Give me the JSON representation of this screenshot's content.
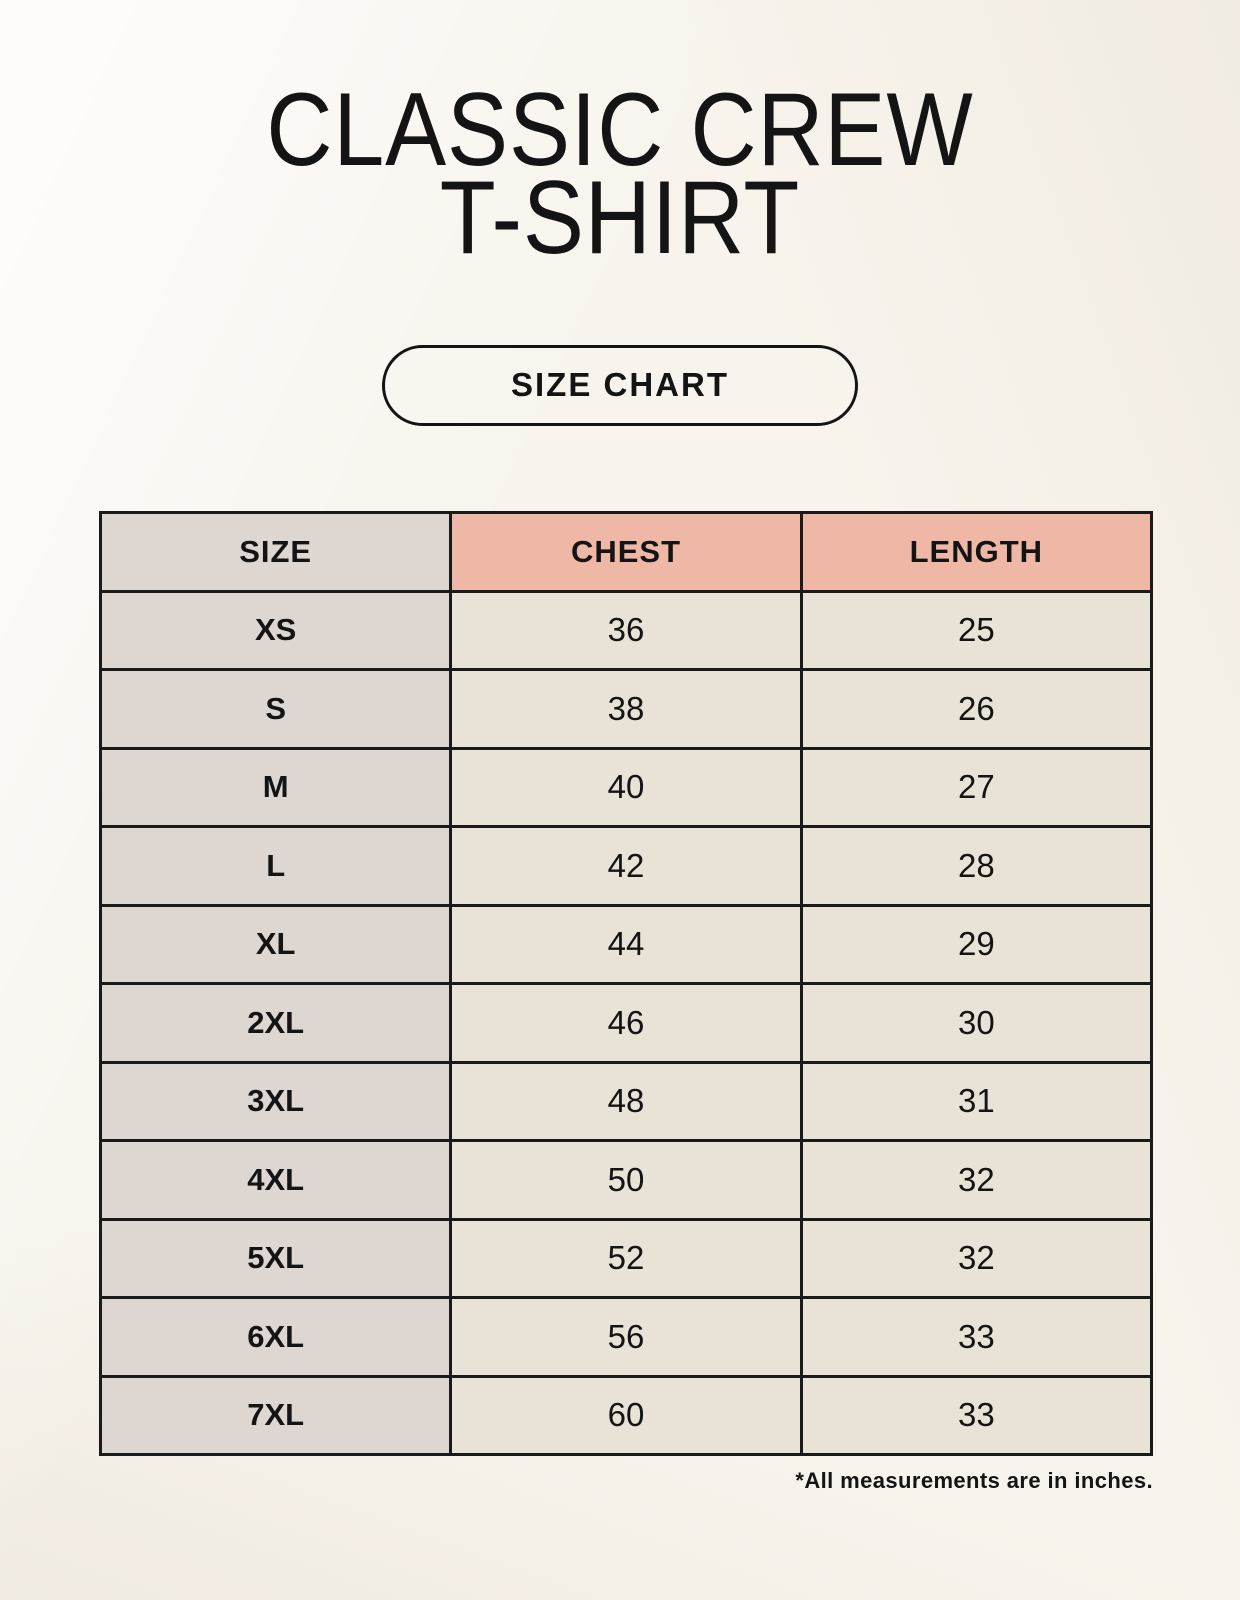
{
  "header": {
    "title_line1": "CLASSIC CREW",
    "title_line2": "T-SHIRT",
    "badge_label": "SIZE CHART"
  },
  "chart_data": {
    "type": "table",
    "columns": [
      "SIZE",
      "CHEST",
      "LENGTH"
    ],
    "rows": [
      [
        "XS",
        "36",
        "25"
      ],
      [
        "S",
        "38",
        "26"
      ],
      [
        "M",
        "40",
        "27"
      ],
      [
        "L",
        "42",
        "28"
      ],
      [
        "XL",
        "44",
        "29"
      ],
      [
        "2XL",
        "46",
        "30"
      ],
      [
        "3XL",
        "48",
        "31"
      ],
      [
        "4XL",
        "50",
        "32"
      ],
      [
        "5XL",
        "52",
        "32"
      ],
      [
        "6XL",
        "56",
        "33"
      ],
      [
        "7XL",
        "60",
        "33"
      ]
    ],
    "units": "inches"
  },
  "footer": {
    "note": "*All measurements are in inches."
  },
  "colors": {
    "page_background": "#f8f4ed",
    "size_column_background": "#ded7d1",
    "measure_header_background": "#efb7a5",
    "value_cell_background": "#e9e2d7",
    "border": "#1a1a1a",
    "text": "#141414"
  }
}
